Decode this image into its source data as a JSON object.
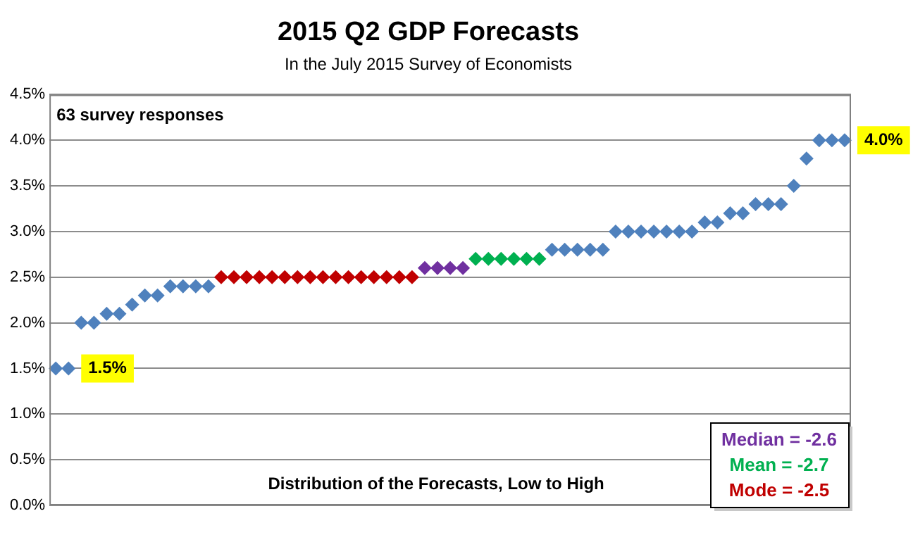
{
  "chart_data": {
    "type": "scatter",
    "title": "2015 Q2 GDP Forecasts",
    "subtitle": "In the July 2015 Survey of Economists",
    "categories": [
      null,
      null,
      null,
      null,
      null,
      null,
      null,
      null,
      null,
      null,
      null,
      null,
      null,
      null,
      null,
      null,
      null,
      null,
      null,
      null,
      null,
      null,
      null,
      null,
      null,
      null,
      null,
      null,
      null,
      null,
      null,
      null,
      null,
      null,
      null,
      null,
      null,
      null,
      null,
      null,
      null,
      null,
      null,
      null,
      null,
      null,
      null,
      null,
      null,
      null,
      null,
      null,
      null,
      null,
      null,
      null,
      null,
      null,
      null,
      null,
      null,
      null,
      null
    ],
    "values": [
      1.5,
      1.5,
      2.0,
      2.0,
      2.1,
      2.1,
      2.2,
      2.3,
      2.3,
      2.4,
      2.4,
      2.4,
      2.4,
      2.5,
      2.5,
      2.5,
      2.5,
      2.5,
      2.5,
      2.5,
      2.5,
      2.5,
      2.5,
      2.5,
      2.5,
      2.5,
      2.5,
      2.5,
      2.5,
      2.6,
      2.6,
      2.6,
      2.6,
      2.7,
      2.7,
      2.7,
      2.7,
      2.7,
      2.7,
      2.8,
      2.8,
      2.8,
      2.8,
      2.8,
      3.0,
      3.0,
      3.0,
      3.0,
      3.0,
      3.0,
      3.0,
      3.1,
      3.1,
      3.2,
      3.2,
      3.3,
      3.3,
      3.3,
      3.5,
      3.8,
      4.0,
      4.0,
      4.0
    ],
    "colors": [
      "#4f81bd",
      "#4f81bd",
      "#4f81bd",
      "#4f81bd",
      "#4f81bd",
      "#4f81bd",
      "#4f81bd",
      "#4f81bd",
      "#4f81bd",
      "#4f81bd",
      "#4f81bd",
      "#4f81bd",
      "#4f81bd",
      "#c00000",
      "#c00000",
      "#c00000",
      "#c00000",
      "#c00000",
      "#c00000",
      "#c00000",
      "#c00000",
      "#c00000",
      "#c00000",
      "#c00000",
      "#c00000",
      "#c00000",
      "#c00000",
      "#c00000",
      "#c00000",
      "#7030a0",
      "#7030a0",
      "#7030a0",
      "#7030a0",
      "#00b050",
      "#00b050",
      "#00b050",
      "#00b050",
      "#00b050",
      "#00b050",
      "#4f81bd",
      "#4f81bd",
      "#4f81bd",
      "#4f81bd",
      "#4f81bd",
      "#4f81bd",
      "#4f81bd",
      "#4f81bd",
      "#4f81bd",
      "#4f81bd",
      "#4f81bd",
      "#4f81bd",
      "#4f81bd",
      "#4f81bd",
      "#4f81bd",
      "#4f81bd",
      "#4f81bd",
      "#4f81bd",
      "#4f81bd",
      "#4f81bd",
      "#4f81bd",
      "#4f81bd",
      "#4f81bd",
      "#4f81bd"
    ],
    "ylim": [
      0,
      4.5
    ],
    "yticks": [
      {
        "value": 0,
        "label": "0.0%"
      },
      {
        "value": 0.5,
        "label": "0.5%"
      },
      {
        "value": 1,
        "label": "1.0%"
      },
      {
        "value": 1.5,
        "label": "1.5%"
      },
      {
        "value": 2,
        "label": "2.0%"
      },
      {
        "value": 2.5,
        "label": "2.5%"
      },
      {
        "value": 3,
        "label": "3.0%"
      },
      {
        "value": 3.5,
        "label": "3.5%"
      },
      {
        "value": 4,
        "label": "4.0%"
      },
      {
        "value": 4.5,
        "label": "4.5%"
      }
    ],
    "grid": "y",
    "tick_labels": "y",
    "marker": "diamond",
    "legend": false,
    "annotations": [
      "63 survey responses",
      "Distribution of the Forecasts, Low to High",
      "Median = -2.6",
      "Mean = -2.7",
      "Mode = -2.5",
      "1.5%",
      "4.0%"
    ]
  }
}
